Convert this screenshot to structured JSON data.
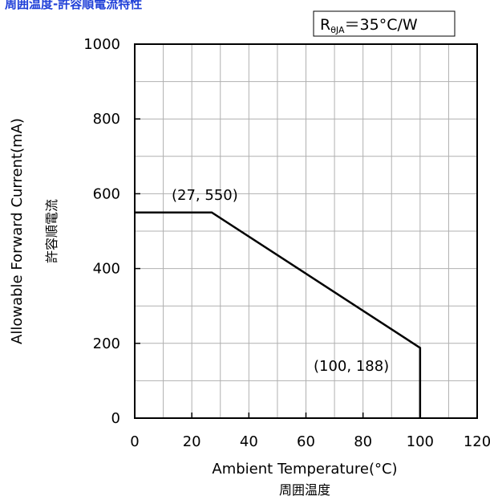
{
  "chart_data": {
    "type": "line",
    "title": "周囲温度-許容順電流特性",
    "xlabel": "Ambient Temperature(°C)",
    "xlabel_jp": "周囲温度",
    "ylabel": "Allowable Forward Current(mA)",
    "ylabel_jp": "許容順電流",
    "xlim": [
      0,
      120
    ],
    "ylim": [
      0,
      1000
    ],
    "x_ticks": [
      0,
      20,
      40,
      60,
      80,
      100,
      120
    ],
    "y_ticks": [
      0,
      200,
      400,
      600,
      800,
      1000
    ],
    "grid": true,
    "series": [
      {
        "x": [
          0,
          27,
          100,
          100
        ],
        "y": [
          550,
          550,
          188,
          0
        ]
      }
    ],
    "annotations": [
      {
        "text": "(27, 550)",
        "x": 27,
        "y": 550
      },
      {
        "text": "(100, 188)",
        "x": 100,
        "y": 188
      }
    ],
    "legend": {
      "main": "R",
      "sub": "θJA",
      "rest": "＝35°C/W"
    },
    "colors": {
      "line": "#000000",
      "grid": "#b0b0b0",
      "title": "#1f3fd8"
    }
  }
}
